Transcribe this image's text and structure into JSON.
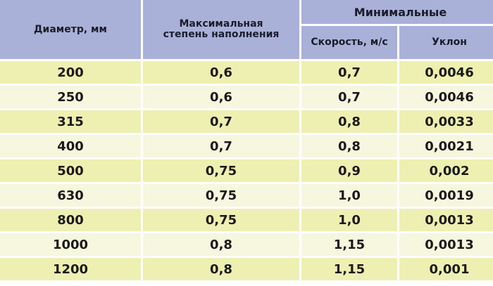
{
  "table": {
    "headers": {
      "diameter": "Диаметр, мм",
      "max_fill": "Максимальная степень наполнения",
      "minimal_group": "Минимальные",
      "speed": "Скорость, м/с",
      "slope": "Уклон"
    },
    "rows": [
      [
        "200",
        "0,6",
        "0,7",
        "0,0046"
      ],
      [
        "250",
        "0,6",
        "0,7",
        "0,0046"
      ],
      [
        "315",
        "0,7",
        "0,8",
        "0,0033"
      ],
      [
        "400",
        "0,7",
        "0,8",
        "0,0021"
      ],
      [
        "500",
        "0,75",
        "0,9",
        "0,002"
      ],
      [
        "630",
        "0,75",
        "1,0",
        "0,0019"
      ],
      [
        "800",
        "0,75",
        "1,0",
        "0,0013"
      ],
      [
        "1000",
        "0,8",
        "1,15",
        "0,0013"
      ],
      [
        "1200",
        "0,8",
        "1,15",
        "0,001"
      ]
    ]
  },
  "colors": {
    "header": "#a9b1d9",
    "row_odd": "#eef0b2",
    "row_even": "#f7f7df"
  }
}
